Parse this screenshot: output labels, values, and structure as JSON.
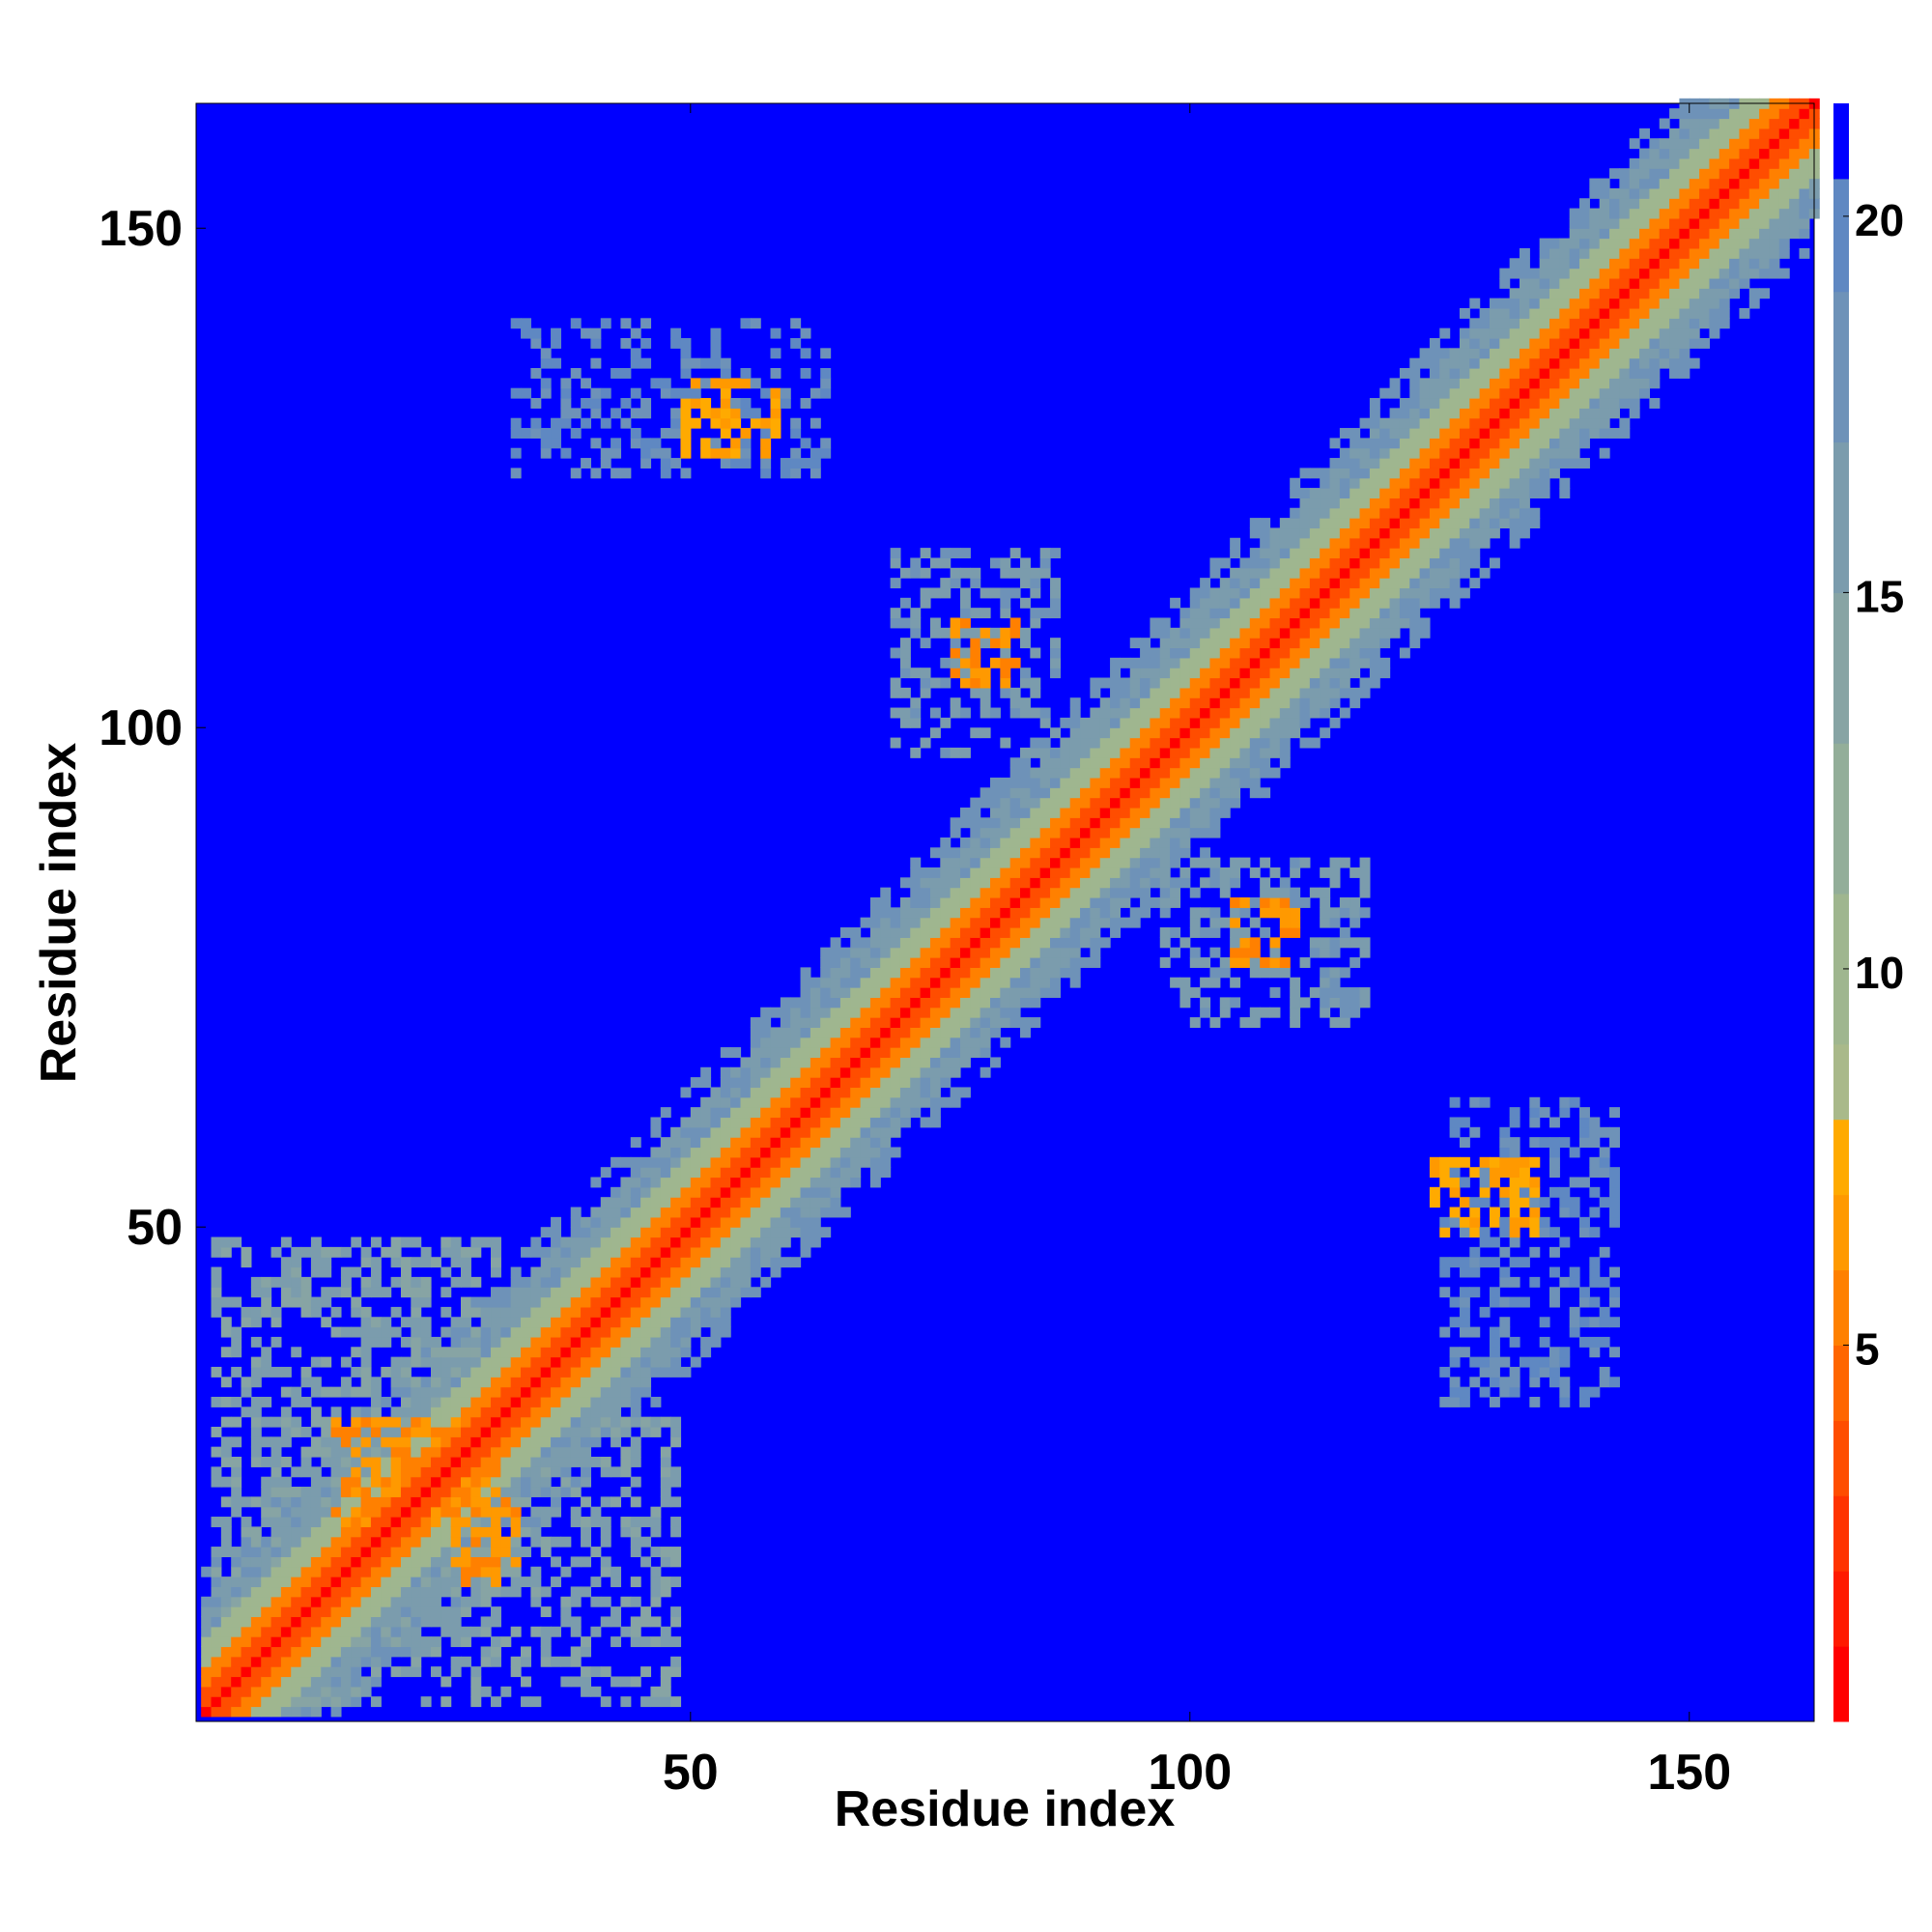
{
  "chart_data": {
    "type": "heatmap",
    "title": "",
    "xlabel": "Residue index",
    "ylabel": "Residue index",
    "xlim": [
      1,
      162
    ],
    "ylim": [
      1,
      162
    ],
    "x_ticks": [
      50,
      100,
      150
    ],
    "y_ticks": [
      50,
      100,
      150
    ],
    "colorbar": {
      "range": [
        0,
        21.5
      ],
      "ticks": [
        5,
        10,
        15,
        20
      ],
      "levels": [
        {
          "max": 1,
          "color": "#ff0000"
        },
        {
          "max": 2,
          "color": "#ff1a00"
        },
        {
          "max": 3,
          "color": "#ff3300"
        },
        {
          "max": 4,
          "color": "#ff4d00"
        },
        {
          "max": 5,
          "color": "#ff6600"
        },
        {
          "max": 6,
          "color": "#ff8000"
        },
        {
          "max": 7,
          "color": "#ff9900"
        },
        {
          "max": 8,
          "color": "#ffaa00"
        },
        {
          "max": 9,
          "color": "#a9b98a"
        },
        {
          "max": 11,
          "color": "#9fb68f"
        },
        {
          "max": 13,
          "color": "#93ae99"
        },
        {
          "max": 15,
          "color": "#87a4a4"
        },
        {
          "max": 17,
          "color": "#7b9cad"
        },
        {
          "max": 19,
          "color": "#6e92b8"
        },
        {
          "max": 20.5,
          "color": "#5f88c2"
        },
        {
          "max": 21.5,
          "color": "#0000ff"
        }
      ]
    },
    "background_color": "#0000ff",
    "diagonal": {
      "description_values": "distance increases with |i-j|; ~0 on diagonal, ~4-7 near diagonal, ~9-17 at band edge, >20 far away"
    },
    "contact_regions": [
      {
        "x": [
          14,
          30
        ],
        "y": [
          20,
          30
        ],
        "value": 5
      },
      {
        "x": [
          26,
          32
        ],
        "y": [
          14,
          22
        ],
        "value": 5
      },
      {
        "x": [
          76,
          82
        ],
        "y": [
          104,
          110
        ],
        "value": 5
      },
      {
        "x": [
          104,
          110
        ],
        "y": [
          76,
          82
        ],
        "value": 5
      },
      {
        "x": [
          49,
          58
        ],
        "y": [
          127,
          134
        ],
        "value": 6
      },
      {
        "x": [
          124,
          134
        ],
        "y": [
          49,
          56
        ],
        "value": 6
      },
      {
        "x": [
          32,
          63
        ],
        "y": [
          125,
          140
        ],
        "value": 18
      },
      {
        "x": [
          125,
          142
        ],
        "y": [
          32,
          62
        ],
        "value": 18
      },
      {
        "x": [
          70,
          86
        ],
        "y": [
          97,
          117
        ],
        "value": 15
      },
      {
        "x": [
          97,
          117
        ],
        "y": [
          70,
          86
        ],
        "value": 15
      },
      {
        "x": [
          2,
          30
        ],
        "y": [
          8,
          48
        ],
        "value": 14
      },
      {
        "x": [
          8,
          48
        ],
        "y": [
          2,
          30
        ],
        "value": 14
      }
    ]
  }
}
